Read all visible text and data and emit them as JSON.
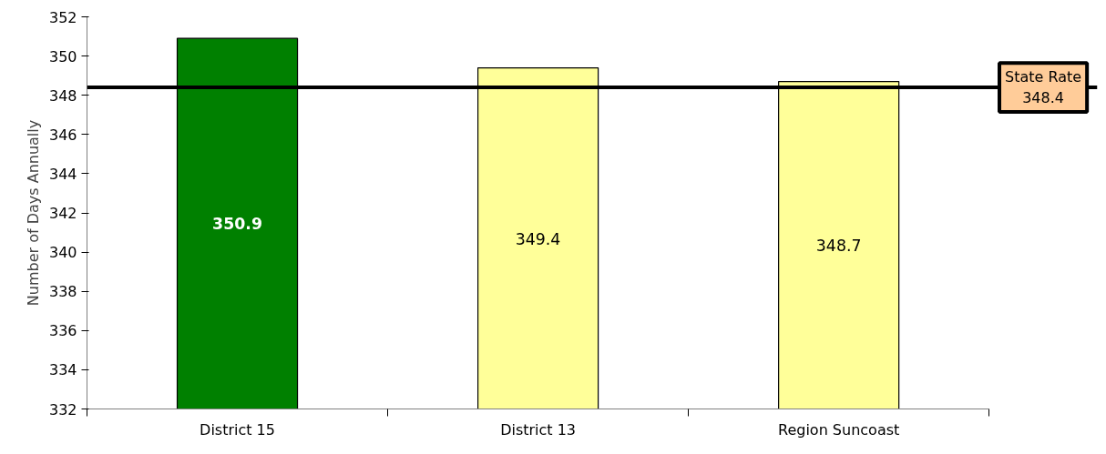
{
  "chart_data": {
    "type": "bar",
    "ylabel": "Number of Days Annually",
    "categories": [
      "District 15",
      "District 13",
      "Region Suncoast"
    ],
    "values": [
      350.9,
      349.4,
      348.7
    ],
    "colors": [
      "#008000",
      "#ffff99",
      "#ffff99"
    ],
    "ylim": [
      332,
      352
    ],
    "yticks": [
      332,
      334,
      336,
      338,
      340,
      342,
      344,
      346,
      348,
      350,
      352
    ],
    "data_labels": true,
    "grid": false,
    "ref_lines": [
      {
        "axis": "y",
        "value": 348.4,
        "label": "State Rate\n348.4",
        "color": "#000000"
      }
    ]
  }
}
